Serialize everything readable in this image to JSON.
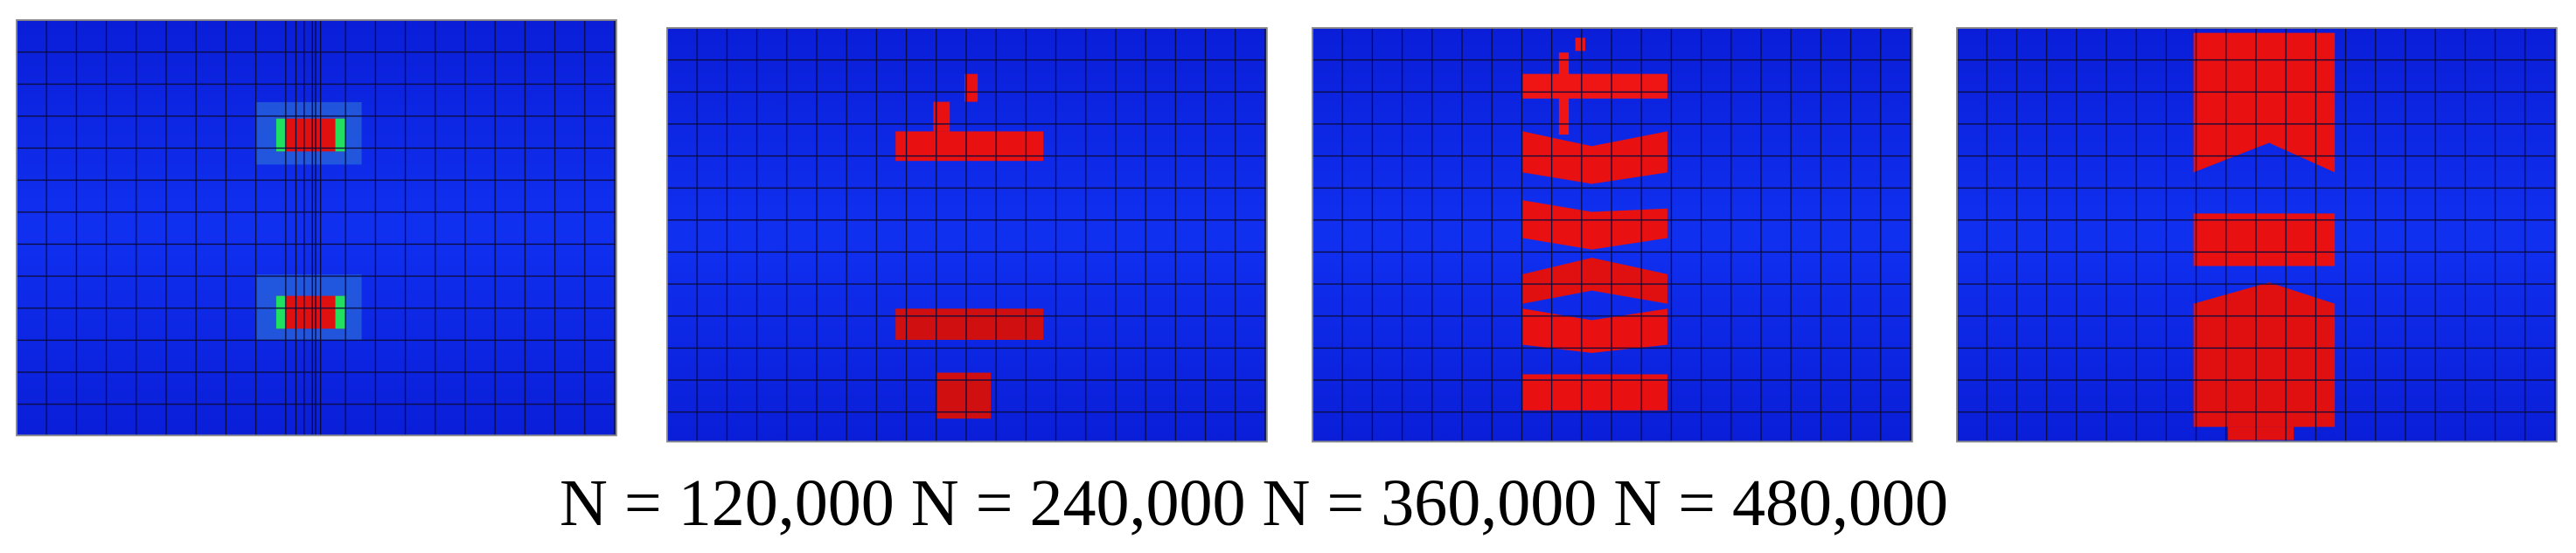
{
  "caption": "N = 120,000 N = 240,000 N = 360,000 N = 480,000"
}
